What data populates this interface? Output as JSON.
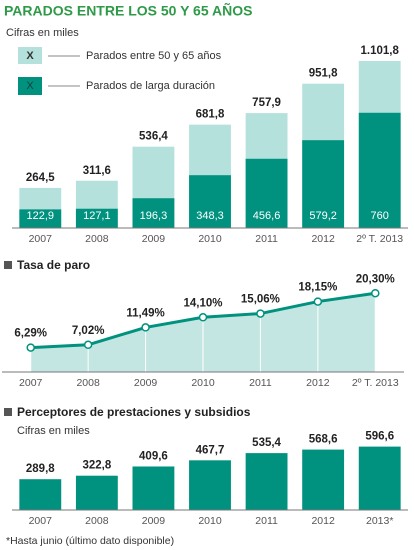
{
  "chart_data": [
    {
      "type": "bar",
      "title": "PARADOS ENTRE LOS 50 Y 65 AÑOS",
      "subtitle": "Cifras en miles",
      "legend_marker": "X",
      "categories": [
        "2007",
        "2008",
        "2009",
        "2010",
        "2011",
        "2012",
        "2º T. 2013"
      ],
      "series": [
        {
          "name": "Parados entre 50 y 65 años",
          "color": "#b5e1dd",
          "values": [
            264.5,
            311.6,
            536.4,
            681.8,
            757.9,
            951.8,
            1101.8
          ],
          "value_labels": [
            "264,5",
            "311,6",
            "536,4",
            "681,8",
            "757,9",
            "951,8",
            "1.101,8"
          ]
        },
        {
          "name": "Parados de larga duración",
          "color": "#00927f",
          "values": [
            122.9,
            127.1,
            196.3,
            348.3,
            456.6,
            579.2,
            760
          ],
          "value_labels": [
            "122,9",
            "127,1",
            "196,3",
            "348,3",
            "456,6",
            "579,2",
            "760"
          ]
        }
      ],
      "ylim": [
        0,
        1240
      ]
    },
    {
      "type": "area",
      "title": "Tasa de paro",
      "categories": [
        "2007",
        "2008",
        "2009",
        "2010",
        "2011",
        "2012",
        "2º T. 2013"
      ],
      "values": [
        6.29,
        7.02,
        11.49,
        14.1,
        15.06,
        18.15,
        20.3
      ],
      "value_labels": [
        "6,29%",
        "7,02%",
        "11,49%",
        "14,10%",
        "15,06%",
        "18,15%",
        "20,30%"
      ],
      "color": "#00927f",
      "fill_color": "#c3e6e2",
      "ylim": [
        0,
        25
      ]
    },
    {
      "type": "bar",
      "title": "Perceptores de prestaciones y subsidios",
      "subtitle": "Cifras en miles",
      "categories": [
        "2007",
        "2008",
        "2009",
        "2010",
        "2011",
        "2012",
        "2013*"
      ],
      "values": [
        289.8,
        322.8,
        409.6,
        467.7,
        535.4,
        568.6,
        596.6
      ],
      "value_labels": [
        "289,8",
        "322,8",
        "409,6",
        "467,7",
        "535,4",
        "568,6",
        "596,6"
      ],
      "color": "#00927f",
      "ylim": [
        0,
        800
      ],
      "note": "*Hasta junio (último dato disponible)"
    }
  ]
}
